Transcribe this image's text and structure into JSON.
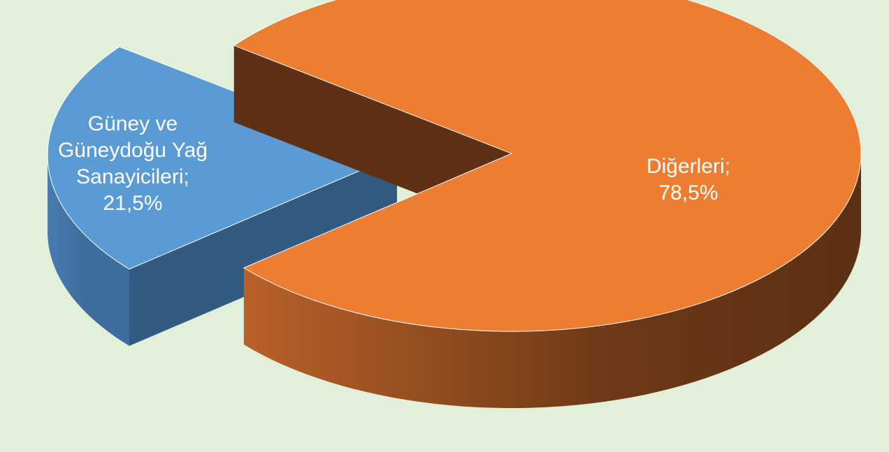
{
  "chart_data": {
    "type": "pie3d",
    "categories": [
      "Güney ve Güneydoğu Yağ Sanayicileri",
      "Diğerleri"
    ],
    "values": [
      21.5,
      78.5
    ],
    "value_labels": [
      "21,5%",
      "78,5%"
    ],
    "label_separator": ";",
    "colors": [
      "#5b9bd5",
      "#ed7d31"
    ]
  }
}
